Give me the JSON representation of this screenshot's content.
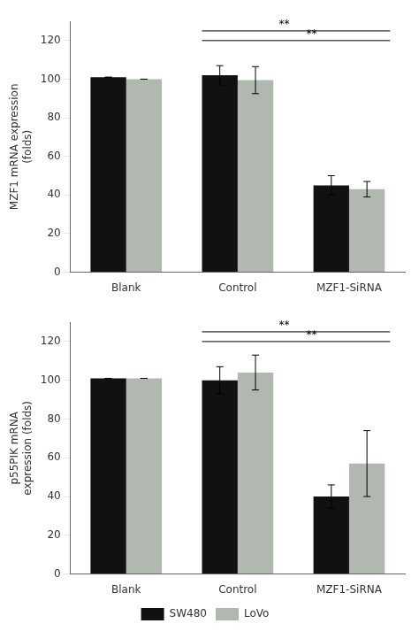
{
  "chart_data": [
    {
      "type": "bar",
      "categories": [
        "Blank",
        "Control",
        "MZF1-SiRNA"
      ],
      "series": [
        {
          "name": "SW480",
          "color": "#111111",
          "values": [
            101,
            102,
            45
          ],
          "errors": [
            0,
            5,
            5
          ]
        },
        {
          "name": "LoVo",
          "color": "#b0b8b0",
          "values": [
            100,
            99.5,
            43
          ],
          "errors": [
            0,
            7,
            4
          ]
        }
      ],
      "ylabel": "MZF1 mRNA expression\n(folds)",
      "ylim": [
        0,
        130
      ],
      "yticks": [
        0,
        20,
        40,
        60,
        80,
        100,
        120
      ],
      "grid": false,
      "legend": false,
      "annotations": [
        {
          "text": "**",
          "y": 125,
          "from": "Control",
          "to": "MZF1-SiRNA"
        },
        {
          "text": "**",
          "y": 120,
          "from": "Control",
          "to": "MZF1-SiRNA"
        }
      ]
    },
    {
      "type": "bar",
      "categories": [
        "Blank",
        "Control",
        "MZF1-SiRNA"
      ],
      "series": [
        {
          "name": "SW480",
          "color": "#111111",
          "values": [
            101,
            100,
            40
          ],
          "errors": [
            0,
            7,
            6
          ]
        },
        {
          "name": "LoVo",
          "color": "#b0b8b0",
          "values": [
            101,
            104,
            57
          ],
          "errors": [
            0,
            9,
            17
          ]
        }
      ],
      "ylabel": "p55PIK mRNA\nexpression (folds)",
      "ylim": [
        0,
        130
      ],
      "yticks": [
        0,
        20,
        40,
        60,
        80,
        100,
        120
      ],
      "grid": false,
      "legend": "bottom",
      "annotations": [
        {
          "text": "**",
          "y": 125,
          "from": "Control",
          "to": "MZF1-SiRNA"
        },
        {
          "text": "**",
          "y": 120,
          "from": "Control",
          "to": "MZF1-SiRNA"
        }
      ]
    }
  ]
}
